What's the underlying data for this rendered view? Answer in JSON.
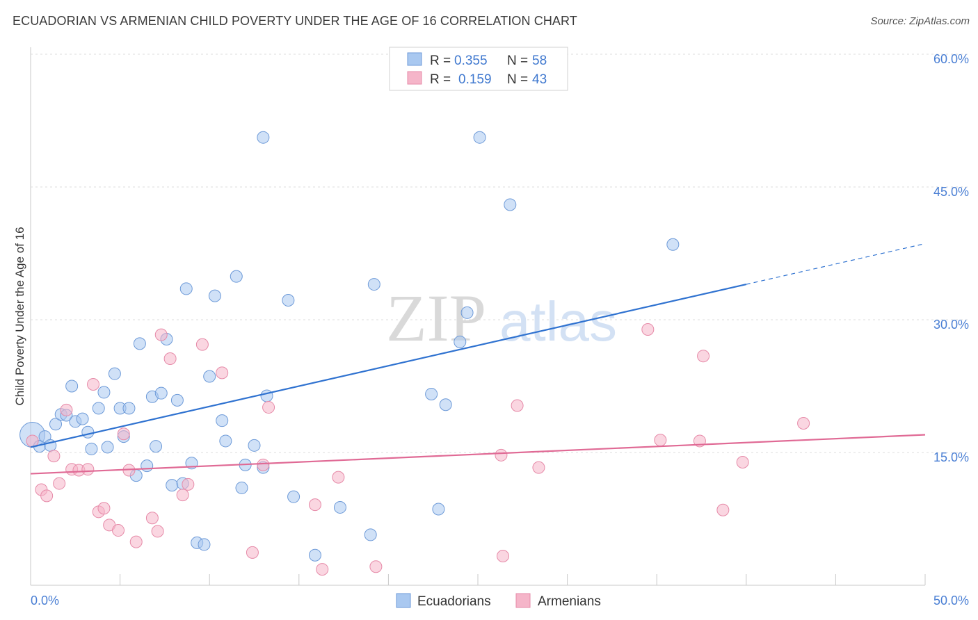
{
  "title": "ECUADORIAN VS ARMENIAN CHILD POVERTY UNDER THE AGE OF 16 CORRELATION CHART",
  "source": "Source: ZipAtlas.com",
  "watermark": {
    "zip": "ZIP",
    "atlas": "atlas"
  },
  "chart_data": {
    "type": "scatter",
    "ylabel": "Child Poverty Under the Age of 16",
    "xlim": [
      0,
      50
    ],
    "ylim": [
      0,
      60
    ],
    "x_tick_labels": [
      "0.0%",
      "50.0%"
    ],
    "y_tick_values": [
      15,
      30,
      45,
      60
    ],
    "y_tick_labels": [
      "15.0%",
      "30.0%",
      "45.0%",
      "60.0%"
    ],
    "legend": {
      "rows": [
        {
          "r_label": "R =",
          "r_value": "0.355",
          "n_label": "N =",
          "n_value": "58"
        },
        {
          "r_label": "R =",
          "r_value": "0.159",
          "n_label": "N =",
          "n_value": "43"
        }
      ]
    },
    "series": [
      {
        "name": "Ecuadorians",
        "color": "#a9c8f0",
        "stroke": "#6d9ad8",
        "line_color": "#2f72d0",
        "trend": {
          "x0": 0,
          "y0": 15.6,
          "x1": 40,
          "y1": 34.0,
          "dash_to_x": 50,
          "dash_to_y": 38.6
        },
        "points": [
          [
            0.1,
            17.0
          ],
          [
            0.5,
            15.7
          ],
          [
            0.8,
            16.8
          ],
          [
            1.1,
            15.8
          ],
          [
            1.4,
            18.2
          ],
          [
            1.7,
            19.3
          ],
          [
            2.0,
            19.2
          ],
          [
            2.3,
            22.5
          ],
          [
            2.5,
            18.5
          ],
          [
            2.9,
            18.8
          ],
          [
            3.2,
            17.3
          ],
          [
            3.4,
            15.4
          ],
          [
            3.8,
            20.0
          ],
          [
            4.1,
            21.8
          ],
          [
            4.3,
            15.6
          ],
          [
            4.7,
            23.9
          ],
          [
            5.0,
            20.0
          ],
          [
            5.2,
            16.8
          ],
          [
            5.5,
            20.0
          ],
          [
            5.9,
            12.4
          ],
          [
            6.1,
            27.3
          ],
          [
            6.5,
            13.5
          ],
          [
            6.8,
            21.3
          ],
          [
            7.0,
            15.7
          ],
          [
            7.3,
            21.7
          ],
          [
            7.6,
            27.8
          ],
          [
            7.9,
            11.3
          ],
          [
            8.2,
            20.9
          ],
          [
            8.5,
            11.5
          ],
          [
            8.7,
            33.5
          ],
          [
            9.0,
            13.8
          ],
          [
            9.3,
            4.8
          ],
          [
            9.7,
            4.6
          ],
          [
            10.0,
            23.6
          ],
          [
            10.3,
            32.7
          ],
          [
            10.7,
            18.6
          ],
          [
            10.9,
            16.3
          ],
          [
            11.5,
            34.9
          ],
          [
            11.8,
            11.0
          ],
          [
            12.0,
            13.6
          ],
          [
            12.5,
            15.8
          ],
          [
            13.0,
            13.3
          ],
          [
            13.2,
            21.4
          ],
          [
            13.0,
            50.6
          ],
          [
            14.4,
            32.2
          ],
          [
            14.7,
            10.0
          ],
          [
            15.9,
            3.4
          ],
          [
            17.3,
            8.8
          ],
          [
            19.0,
            5.7
          ],
          [
            19.2,
            34.0
          ],
          [
            22.4,
            21.6
          ],
          [
            22.8,
            8.6
          ],
          [
            23.2,
            20.4
          ],
          [
            24.0,
            27.5
          ],
          [
            24.4,
            30.8
          ],
          [
            25.1,
            50.6
          ],
          [
            26.8,
            43.0
          ],
          [
            35.9,
            38.5
          ]
        ]
      },
      {
        "name": "Armenians",
        "color": "#f5b5c9",
        "stroke": "#e68aa8",
        "line_color": "#e06a95",
        "trend": {
          "x0": 0,
          "y0": 12.6,
          "x1": 50,
          "y1": 17.0
        },
        "points": [
          [
            0.1,
            16.3
          ],
          [
            0.6,
            10.8
          ],
          [
            0.9,
            10.1
          ],
          [
            1.3,
            14.6
          ],
          [
            1.6,
            11.5
          ],
          [
            2.0,
            19.8
          ],
          [
            2.3,
            13.1
          ],
          [
            2.7,
            13.0
          ],
          [
            3.2,
            13.1
          ],
          [
            3.5,
            22.7
          ],
          [
            3.8,
            8.3
          ],
          [
            4.1,
            8.7
          ],
          [
            4.4,
            6.8
          ],
          [
            4.9,
            6.2
          ],
          [
            5.2,
            17.1
          ],
          [
            5.5,
            13.0
          ],
          [
            5.9,
            4.9
          ],
          [
            6.8,
            7.6
          ],
          [
            7.1,
            6.1
          ],
          [
            7.3,
            28.3
          ],
          [
            7.8,
            25.6
          ],
          [
            8.5,
            10.2
          ],
          [
            8.8,
            11.4
          ],
          [
            9.6,
            27.2
          ],
          [
            10.7,
            24.0
          ],
          [
            12.4,
            3.7
          ],
          [
            13.0,
            13.6
          ],
          [
            13.3,
            20.1
          ],
          [
            15.9,
            9.1
          ],
          [
            16.3,
            1.8
          ],
          [
            17.2,
            12.2
          ],
          [
            19.3,
            2.1
          ],
          [
            26.4,
            3.3
          ],
          [
            26.3,
            14.7
          ],
          [
            27.2,
            20.3
          ],
          [
            28.4,
            13.3
          ],
          [
            34.5,
            28.9
          ],
          [
            35.2,
            16.4
          ],
          [
            37.4,
            16.3
          ],
          [
            37.6,
            25.9
          ],
          [
            38.7,
            8.5
          ],
          [
            39.8,
            13.9
          ],
          [
            43.2,
            18.3
          ]
        ]
      }
    ]
  }
}
